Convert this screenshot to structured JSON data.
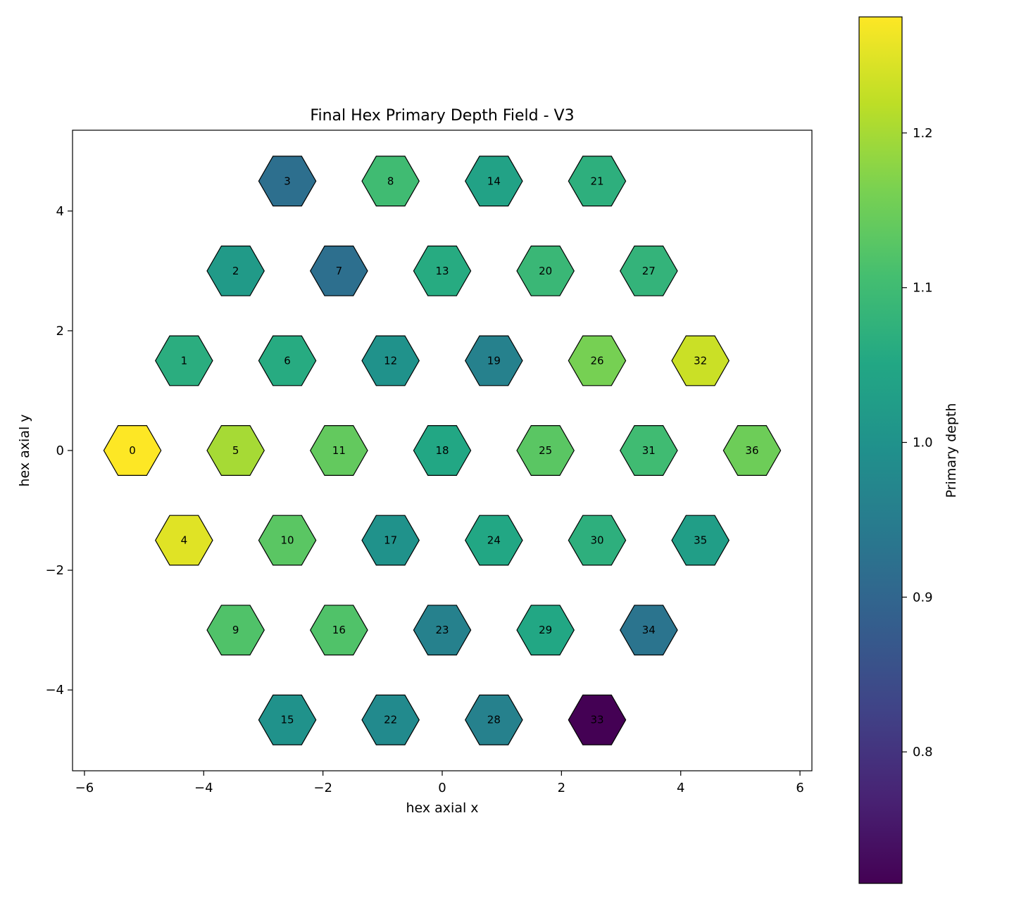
{
  "chart_data": {
    "type": "hexbin",
    "title": "Final Hex Primary Depth Field - V3",
    "xlabel": "hex axial x",
    "ylabel": "hex axial y",
    "xlim": [
      -6.2,
      6.2
    ],
    "ylim": [
      -5.35,
      5.35
    ],
    "xticks": [
      -6,
      -4,
      -2,
      0,
      2,
      4,
      6
    ],
    "yticks": [
      -4,
      -2,
      0,
      2,
      4
    ],
    "xtick_labels": [
      "−6",
      "−4",
      "−2",
      "0",
      "2",
      "4",
      "6"
    ],
    "ytick_labels": [
      "−4",
      "−2",
      "0",
      "2",
      "4"
    ],
    "colormap": "viridis",
    "colorbar": {
      "label": "Primary depth",
      "range": [
        0.715,
        1.275
      ],
      "ticks": [
        0.8,
        0.9,
        1.0,
        1.1,
        1.2
      ],
      "tick_labels": [
        "0.8",
        "0.9",
        "1.0",
        "1.1",
        "1.2"
      ]
    },
    "cells": [
      {
        "id": "0",
        "x": -5.196,
        "y": 0.0,
        "value": 1.275
      },
      {
        "id": "1",
        "x": -4.33,
        "y": 1.5,
        "value": 1.065
      },
      {
        "id": "2",
        "x": -3.464,
        "y": 3.0,
        "value": 1.02
      },
      {
        "id": "3",
        "x": -2.598,
        "y": 4.5,
        "value": 0.92
      },
      {
        "id": "4",
        "x": -4.33,
        "y": -1.5,
        "value": 1.25
      },
      {
        "id": "5",
        "x": -3.464,
        "y": 0.0,
        "value": 1.2
      },
      {
        "id": "6",
        "x": -2.598,
        "y": 1.5,
        "value": 1.06
      },
      {
        "id": "7",
        "x": -1.732,
        "y": 3.0,
        "value": 0.92
      },
      {
        "id": "8",
        "x": -0.866,
        "y": 4.5,
        "value": 1.1
      },
      {
        "id": "9",
        "x": -3.464,
        "y": -3.0,
        "value": 1.12
      },
      {
        "id": "10",
        "x": -2.598,
        "y": -1.5,
        "value": 1.13
      },
      {
        "id": "11",
        "x": -1.732,
        "y": 0.0,
        "value": 1.14
      },
      {
        "id": "12",
        "x": -0.866,
        "y": 1.5,
        "value": 1.0
      },
      {
        "id": "13",
        "x": 0.0,
        "y": 3.0,
        "value": 1.06
      },
      {
        "id": "14",
        "x": 0.866,
        "y": 4.5,
        "value": 1.04
      },
      {
        "id": "15",
        "x": -2.598,
        "y": -4.5,
        "value": 1.0
      },
      {
        "id": "16",
        "x": -1.732,
        "y": -3.0,
        "value": 1.12
      },
      {
        "id": "17",
        "x": -0.866,
        "y": -1.5,
        "value": 1.0
      },
      {
        "id": "18",
        "x": 0.0,
        "y": 0.0,
        "value": 1.05
      },
      {
        "id": "19",
        "x": 0.866,
        "y": 1.5,
        "value": 0.96
      },
      {
        "id": "20",
        "x": 1.732,
        "y": 3.0,
        "value": 1.09
      },
      {
        "id": "21",
        "x": 2.598,
        "y": 4.5,
        "value": 1.07
      },
      {
        "id": "22",
        "x": -0.866,
        "y": -4.5,
        "value": 0.98
      },
      {
        "id": "23",
        "x": 0.0,
        "y": -3.0,
        "value": 0.96
      },
      {
        "id": "24",
        "x": 0.866,
        "y": -1.5,
        "value": 1.05
      },
      {
        "id": "25",
        "x": 1.732,
        "y": 0.0,
        "value": 1.13
      },
      {
        "id": "26",
        "x": 2.598,
        "y": 1.5,
        "value": 1.16
      },
      {
        "id": "27",
        "x": 3.464,
        "y": 3.0,
        "value": 1.08
      },
      {
        "id": "28",
        "x": 0.866,
        "y": -4.5,
        "value": 0.96
      },
      {
        "id": "29",
        "x": 1.732,
        "y": -3.0,
        "value": 1.05
      },
      {
        "id": "30",
        "x": 2.598,
        "y": -1.5,
        "value": 1.07
      },
      {
        "id": "31",
        "x": 3.464,
        "y": 0.0,
        "value": 1.1
      },
      {
        "id": "32",
        "x": 4.33,
        "y": 1.5,
        "value": 1.23
      },
      {
        "id": "33",
        "x": 2.598,
        "y": -4.5,
        "value": 0.715
      },
      {
        "id": "34",
        "x": 3.464,
        "y": -3.0,
        "value": 0.93
      },
      {
        "id": "35",
        "x": 4.33,
        "y": -1.5,
        "value": 1.03
      },
      {
        "id": "36",
        "x": 5.196,
        "y": 0.0,
        "value": 1.15
      }
    ]
  }
}
